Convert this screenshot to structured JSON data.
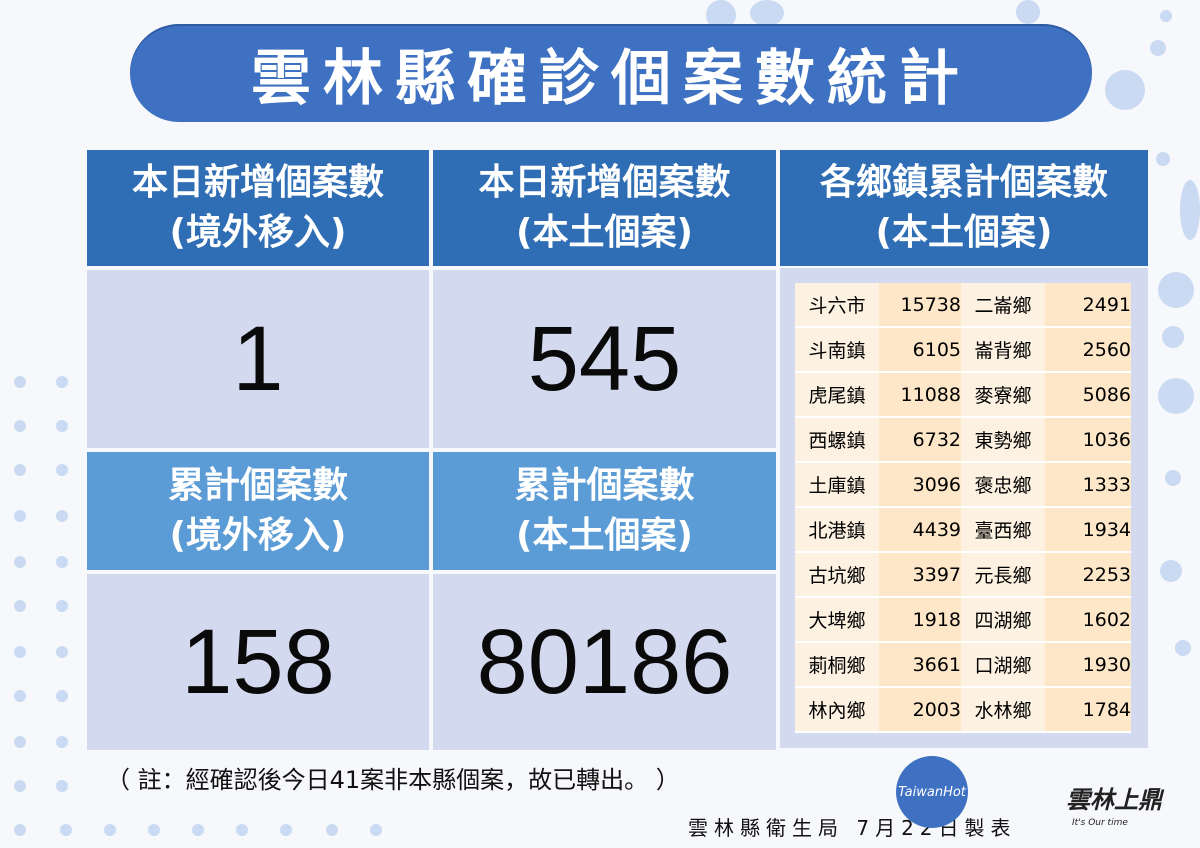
{
  "title": "雲林縣確診個案數統計",
  "boxes": {
    "today_imported": {
      "header_line1": "本日新增個案數",
      "header_line2": "(境外移入)",
      "value": "1"
    },
    "today_local": {
      "header_line1": "本日新增個案數",
      "header_line2": "(本土個案)",
      "value": "545"
    },
    "total_imported": {
      "header_line1": "累計個案數",
      "header_line2": "(境外移入)",
      "value": "158"
    },
    "total_local": {
      "header_line1": "累計個案數",
      "header_line2": "(本土個案)",
      "value": "80186"
    }
  },
  "townships": {
    "header_line1": "各鄉鎮累計個案數",
    "header_line2": "(本土個案)",
    "rows": [
      {
        "name1": "斗六市",
        "count1": "15738",
        "name2": "二崙鄉",
        "count2": "2491"
      },
      {
        "name1": "斗南鎮",
        "count1": "6105",
        "name2": "崙背鄉",
        "count2": "2560"
      },
      {
        "name1": "虎尾鎮",
        "count1": "11088",
        "name2": "麥寮鄉",
        "count2": "5086"
      },
      {
        "name1": "西螺鎮",
        "count1": "6732",
        "name2": "東勢鄉",
        "count2": "1036"
      },
      {
        "name1": "土庫鎮",
        "count1": "3096",
        "name2": "褒忠鄉",
        "count2": "1333"
      },
      {
        "name1": "北港鎮",
        "count1": "4439",
        "name2": "臺西鄉",
        "count2": "1934"
      },
      {
        "name1": "古坑鄉",
        "count1": "3397",
        "name2": "元長鄉",
        "count2": "2253"
      },
      {
        "name1": "大埤鄉",
        "count1": "1918",
        "name2": "四湖鄉",
        "count2": "1602"
      },
      {
        "name1": "莿桐鄉",
        "count1": "3661",
        "name2": "口湖鄉",
        "count2": "1930"
      },
      {
        "name1": "林內鄉",
        "count1": "2003",
        "name2": "水林鄉",
        "count2": "1784"
      }
    ]
  },
  "note": "（ 註：經確認後今日41案非本縣個案，故已轉出。 ）",
  "footer": "雲林縣衛生局 7月22日製表",
  "badge_text": "TaiwanHot",
  "logo_text": "雲林上鼎",
  "logo_sub": "It's Our time",
  "colors": {
    "title_bg": "#3f71c2",
    "header_dark": "#2f6db4",
    "header_light": "#5c9cd6",
    "value_bg": "#d3d9ef",
    "table_bg": "#fde7c8"
  }
}
